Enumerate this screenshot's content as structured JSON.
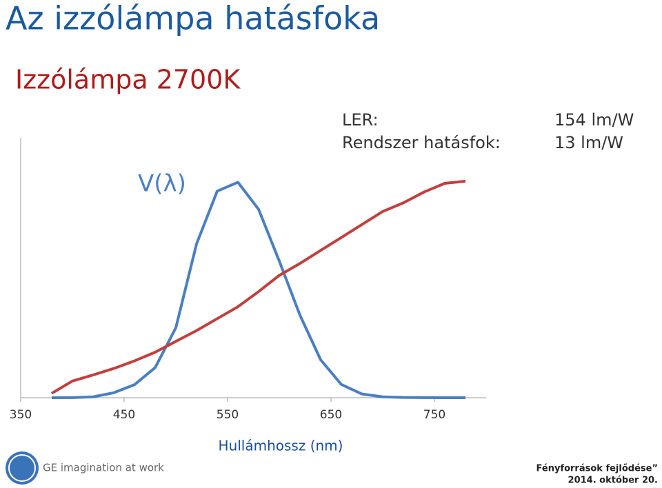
{
  "title": "Az izzólámpa hatásfoka",
  "subtitle": "Izzólámpa 2700K",
  "annotations": [
    {
      "label": "LER:",
      "value": "154 lm/W"
    },
    {
      "label": "Rendszer hatásfok:",
      "value": "13 lm/W"
    }
  ],
  "footer": {
    "brand": "GE imagination at work",
    "event": "Fényforrások fejlődése”",
    "date": "2014. október 20."
  },
  "chart_data": {
    "type": "line",
    "x": [
      380,
      400,
      420,
      440,
      460,
      480,
      500,
      520,
      540,
      560,
      580,
      600,
      620,
      640,
      660,
      680,
      700,
      720,
      740,
      760,
      780
    ],
    "series": [
      {
        "name": "V(λ)",
        "color": "#4a7fc1",
        "values": [
          4e-05,
          0.0004,
          0.004,
          0.023,
          0.06,
          0.139,
          0.323,
          0.71,
          0.954,
          0.995,
          0.87,
          0.631,
          0.381,
          0.175,
          0.061,
          0.017,
          0.0041,
          0.001,
          0.00025,
          6e-05,
          0
        ]
      },
      {
        "color": "#c0403e",
        "values": [
          0.02,
          0.077,
          0.105,
          0.135,
          0.17,
          0.21,
          0.26,
          0.31,
          0.365,
          0.42,
          0.49,
          0.565,
          0.62,
          0.68,
          0.74,
          0.8,
          0.86,
          0.9,
          0.95,
          0.99,
          1.0
        ]
      }
    ],
    "xlabel": "Hullámhossz (nm)",
    "xlim": [
      350,
      800
    ],
    "xticks": [
      350,
      450,
      550,
      650,
      750
    ],
    "ylim": [
      0,
      1.2
    ]
  }
}
